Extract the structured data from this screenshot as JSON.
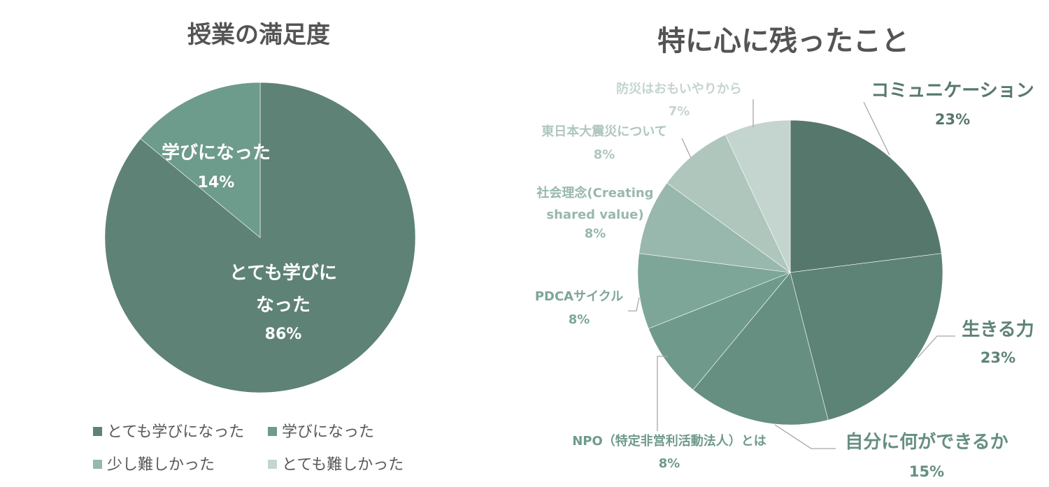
{
  "chart_data": [
    {
      "type": "pie",
      "title": "授業の満足度",
      "slices": [
        {
          "label": "とても学びになった",
          "display_label": [
            "とても学びに",
            "なった"
          ],
          "value": 86,
          "value_label": "86%",
          "color": "#5e8276"
        },
        {
          "label": "学びになった",
          "display_label": [
            "学びになった"
          ],
          "value": 14,
          "value_label": "14%",
          "color": "#6d9b8c"
        },
        {
          "label": "少し難しかった",
          "display_label": [],
          "value": 0,
          "value_label": "",
          "color": "#96b8ad"
        },
        {
          "label": "とても難しかった",
          "display_label": [],
          "value": 0,
          "value_label": "",
          "color": "#c3d6cf"
        }
      ],
      "legend": {
        "placement": "bottom",
        "entries": [
          "とても学びになった",
          "学びになった",
          "少し難しかった",
          "とても難しかった"
        ]
      }
    },
    {
      "type": "pie",
      "title": "特に心に残ったこと",
      "slices": [
        {
          "label": "コミュニケーション",
          "display_label": [
            "コミュニケーション"
          ],
          "value": 23,
          "value_label": "23%",
          "color": "#56786c"
        },
        {
          "label": "生きる力",
          "display_label": [
            "生きる力"
          ],
          "value": 23,
          "value_label": "23%",
          "color": "#5d8376"
        },
        {
          "label": "自分に何ができるか",
          "display_label": [
            "自分に何ができるか"
          ],
          "value": 15,
          "value_label": "15%",
          "color": "#668f81"
        },
        {
          "label": "NPO（特定非営利活動法人）とは",
          "display_label": [
            "NPO（特定非営利活動法人）とは"
          ],
          "value": 8,
          "value_label": "8%",
          "color": "#6f9a8b"
        },
        {
          "label": "PDCAサイクル",
          "display_label": [
            "PDCAサイクル"
          ],
          "value": 8,
          "value_label": "8%",
          "color": "#7da698"
        },
        {
          "label": "社会理念(Creating shared value)",
          "display_label": [
            "社会理念(Creating",
            "shared value)"
          ],
          "value": 8,
          "value_label": "8%",
          "color": "#98b8ad"
        },
        {
          "label": "東日本大震災について",
          "display_label": [
            "東日本大震災について"
          ],
          "value": 8,
          "value_label": "8%",
          "color": "#afc6bd"
        },
        {
          "label": "防災はおもいやりから",
          "display_label": [
            "防災はおもいやりから"
          ],
          "value": 7,
          "value_label": "7%",
          "color": "#c4d4ce"
        }
      ]
    }
  ]
}
